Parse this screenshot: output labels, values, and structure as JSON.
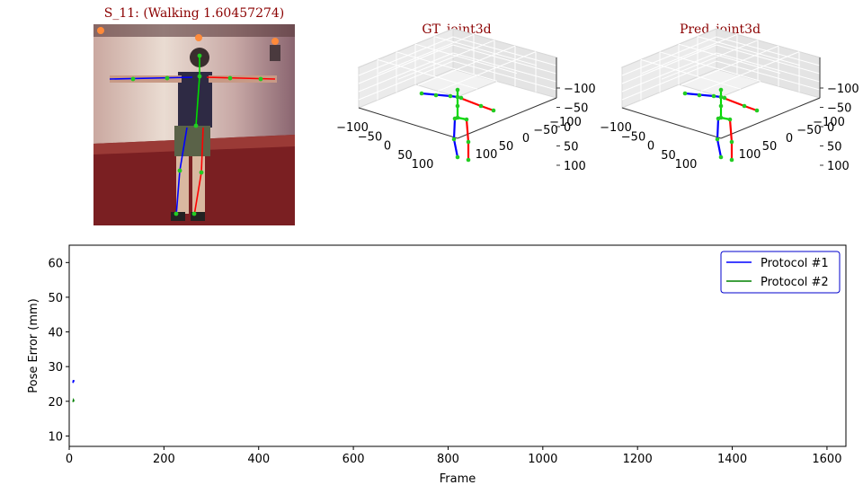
{
  "panels": {
    "image_title": "S_11: (Walking 1.60457274)",
    "gt_title": "GT_joint3d",
    "pred_title": "Pred_joint3d"
  },
  "axes3d": {
    "z_ticks": [
      "−100",
      "−50",
      "0",
      "50",
      "100"
    ],
    "x_ticks": [
      "−100",
      "−50",
      "0",
      "50",
      "100"
    ],
    "y_ticks": [
      "100",
      "50",
      "0",
      "−50",
      "−100"
    ]
  },
  "colors": {
    "left": "#0000ff",
    "right": "#ff0000",
    "center": "#00dd00",
    "joints": "#22cc22",
    "protocol1": "#0000ff",
    "protocol2": "#008000"
  },
  "chart_data": {
    "type": "line",
    "title": "",
    "xlabel": "Frame",
    "ylabel": "Pose Error (mm)",
    "xlim": [
      0,
      1640
    ],
    "ylim": [
      7,
      65
    ],
    "x_ticks": [
      0,
      200,
      400,
      600,
      800,
      1000,
      1200,
      1400,
      1600
    ],
    "y_ticks": [
      10,
      20,
      30,
      40,
      50,
      60
    ],
    "legend_position": "top-right",
    "series": [
      {
        "name": "Protocol #1",
        "x": [
          8,
          9,
          10
        ],
        "values": [
          25.3,
          26.1,
          25.7
        ]
      },
      {
        "name": "Protocol #2",
        "x": [
          8,
          9,
          10
        ],
        "values": [
          19.8,
          20.3,
          20.0
        ]
      }
    ]
  }
}
